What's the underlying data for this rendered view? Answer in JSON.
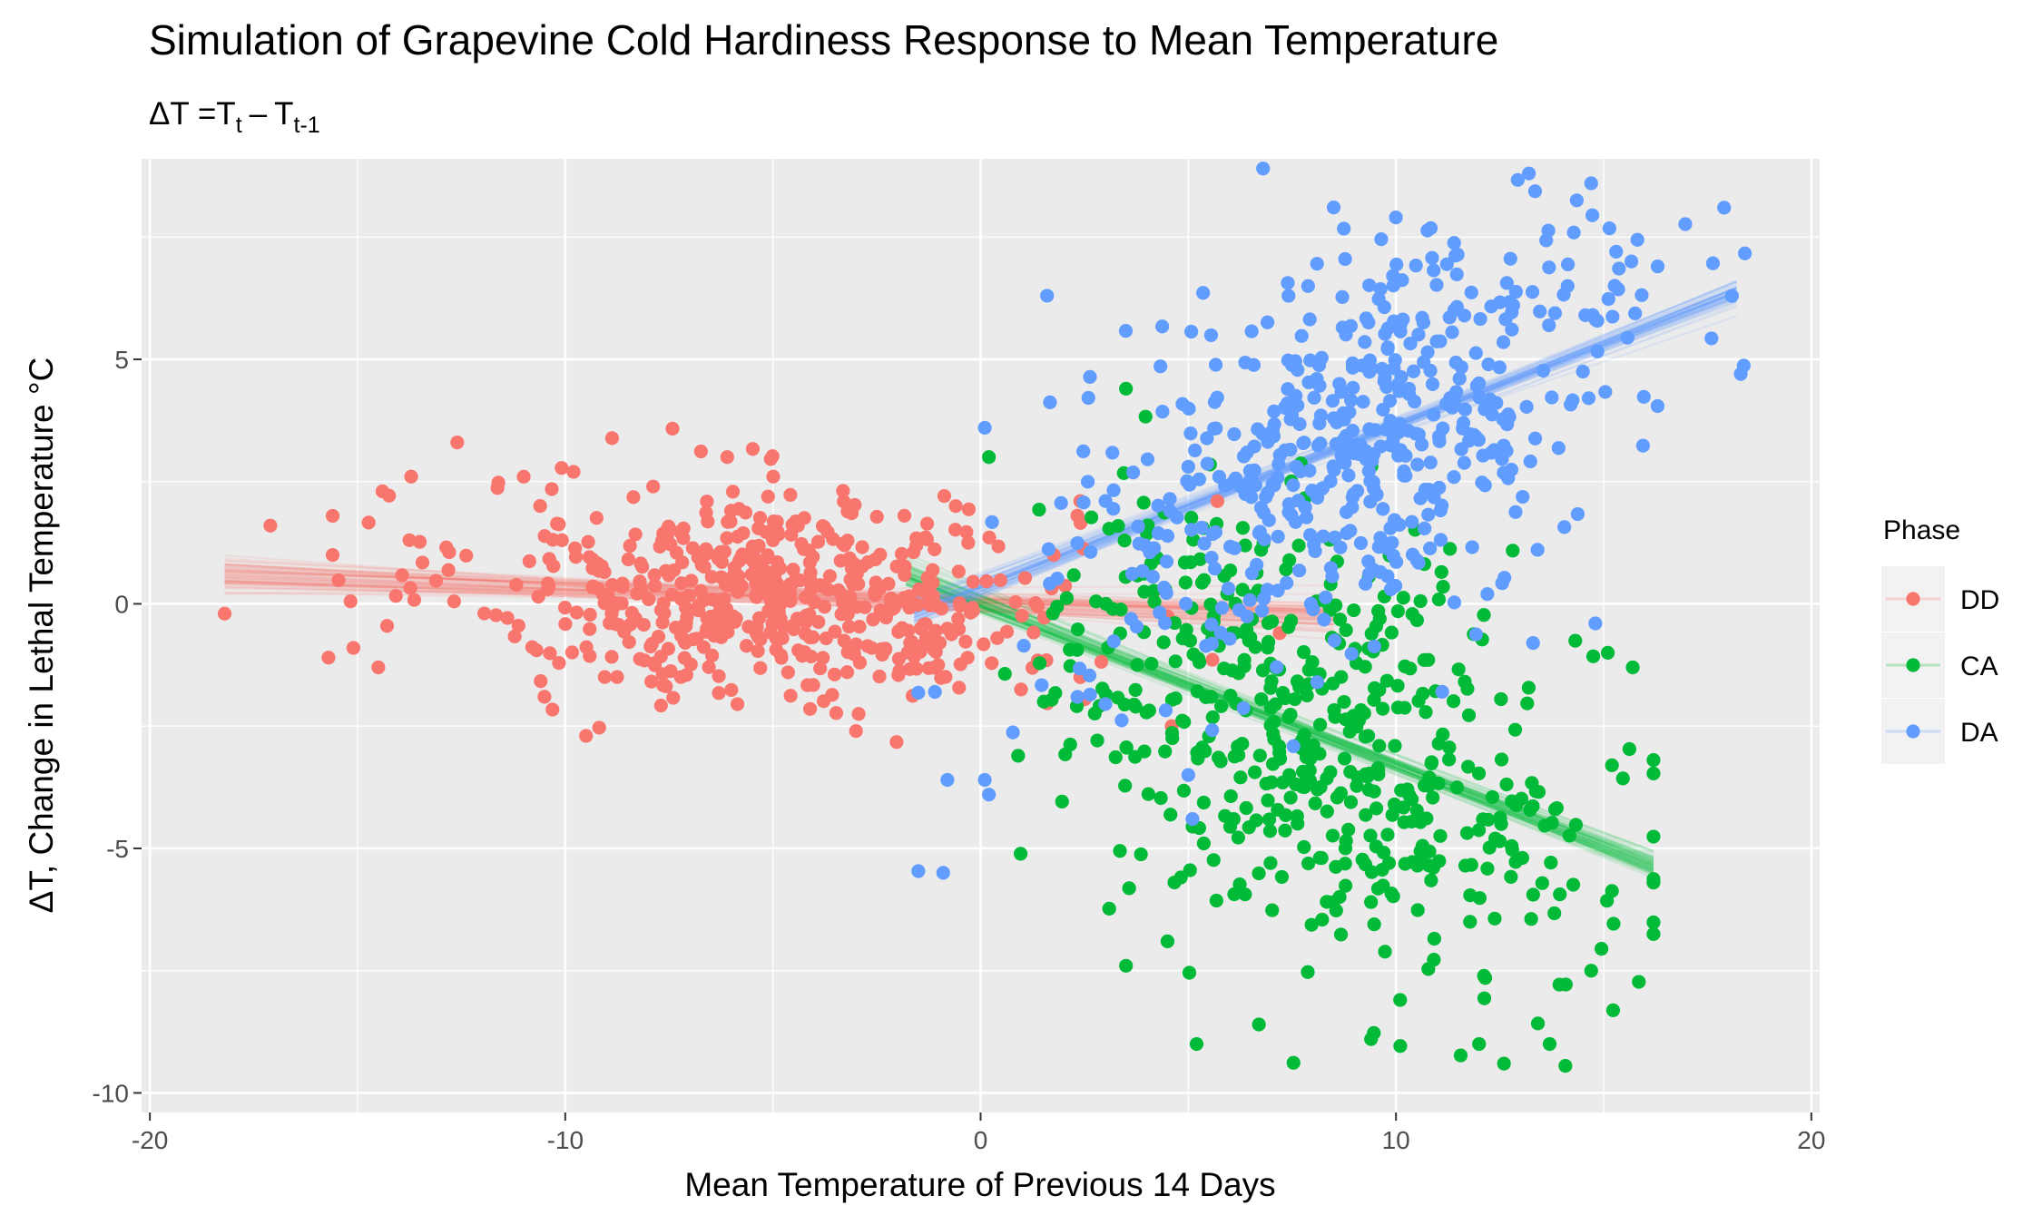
{
  "chart_data": {
    "type": "scatter",
    "title": "Simulation of Grapevine Cold Hardiness Response to Mean Temperature",
    "subtitle": {
      "lhs": "ΔT =",
      "t1": "T",
      "sub1": "t",
      "minus": "–",
      "t2": "T",
      "sub2": "t-1"
    },
    "xlabel": "Mean Temperature of Previous 14 Days",
    "ylabel": "ΔT, Change in Lethal Temperature °C",
    "xlim": [
      -20.2,
      20.2
    ],
    "ylim": [
      -10.4,
      9.1
    ],
    "x_ticks": [
      -20,
      -10,
      0,
      10,
      20
    ],
    "x_tick_labels": [
      "-20",
      "-10",
      "0",
      "10",
      "20"
    ],
    "y_ticks": [
      -10,
      -5,
      0,
      5
    ],
    "y_tick_labels": [
      "-10",
      "-5",
      "0",
      "5"
    ],
    "grid": true,
    "background": "#EBEBEB",
    "legend": {
      "title": "Phase",
      "position": "right",
      "entries": [
        "DD",
        "CA",
        "DA"
      ]
    },
    "series": [
      {
        "name": "DD",
        "color": "#F8766D",
        "fit": {
          "slope": -0.032,
          "intercept": 0.02,
          "x_range": [
            -18.2,
            8.5
          ]
        },
        "scatter": {
          "count": 560,
          "x_center": -5.0,
          "x_sd": 3.6,
          "x_range": [
            -18.2,
            8.0
          ],
          "residual_sd": 1.1
        },
        "points": [
          [
            -18.2,
            -0.2
          ],
          [
            -17.1,
            1.6
          ],
          [
            -15.6,
            1.8
          ],
          [
            -15.6,
            1.0
          ],
          [
            -15.1,
            -0.9
          ],
          [
            -15.7,
            -1.1
          ],
          [
            -14.5,
            -1.3
          ],
          [
            -14.4,
            2.3
          ],
          [
            -12.6,
            3.3
          ],
          [
            -11.0,
            2.6
          ],
          [
            -10.5,
            -1.9
          ],
          [
            -9.8,
            2.7
          ],
          [
            -9.5,
            -2.7
          ],
          [
            -6.1,
            3.0
          ],
          [
            -3.0,
            -2.6
          ],
          [
            -0.6,
            2.0
          ],
          [
            0.4,
            -0.7
          ],
          [
            2.4,
            -1.5
          ],
          [
            2.4,
            2.1
          ],
          [
            4.6,
            -2.5
          ],
          [
            5.7,
            2.1
          ],
          [
            7.2,
            -0.6
          ]
        ]
      },
      {
        "name": "CA",
        "color": "#00BA38",
        "fit": {
          "slope": -0.33,
          "intercept": 0.0,
          "x_range": [
            -1.8,
            16.2
          ]
        },
        "scatter": {
          "count": 520,
          "x_center": 8.2,
          "x_sd": 3.3,
          "x_range": [
            -0.2,
            16.2
          ],
          "residual_sd": 2.1
        },
        "points": [
          [
            3.5,
            4.4
          ],
          [
            3.5,
            -7.4
          ],
          [
            4.5,
            -6.9
          ],
          [
            5.2,
            -9.0
          ],
          [
            6.7,
            -8.6
          ],
          [
            9.4,
            -8.9
          ],
          [
            10.1,
            -8.1
          ],
          [
            12.0,
            -9.0
          ],
          [
            12.6,
            -9.4
          ],
          [
            13.7,
            -9.0
          ],
          [
            14.7,
            -7.5
          ],
          [
            15.1,
            -1.0
          ],
          [
            15.2,
            -3.3
          ],
          [
            15.7,
            -1.3
          ],
          [
            16.2,
            -5.7
          ],
          [
            0.2,
            3.0
          ]
        ]
      },
      {
        "name": "DA",
        "color": "#619CFF",
        "fit": {
          "slope": 0.33,
          "intercept": 0.35,
          "x_range": [
            -1.6,
            18.2
          ]
        },
        "scatter": {
          "count": 520,
          "x_center": 9.2,
          "x_sd": 3.4,
          "x_range": [
            -1.5,
            18.4
          ],
          "residual_sd": 1.9
        },
        "points": [
          [
            6.8,
            8.9
          ],
          [
            13.2,
            8.8
          ],
          [
            14.7,
            8.6
          ],
          [
            17.9,
            8.1
          ],
          [
            18.3,
            4.7
          ],
          [
            16.3,
            6.9
          ],
          [
            15.3,
            7.2
          ],
          [
            1.6,
            6.3
          ],
          [
            0.1,
            3.6
          ],
          [
            -0.9,
            -5.5
          ],
          [
            -0.8,
            -3.6
          ],
          [
            -1.1,
            -1.8
          ],
          [
            0.1,
            -3.6
          ],
          [
            0.2,
            -3.9
          ],
          [
            5.0,
            -3.5
          ],
          [
            5.1,
            -4.4
          ],
          [
            13.3,
            -0.8
          ],
          [
            14.8,
            -0.4
          ],
          [
            12.2,
            0.2
          ]
        ]
      }
    ]
  }
}
